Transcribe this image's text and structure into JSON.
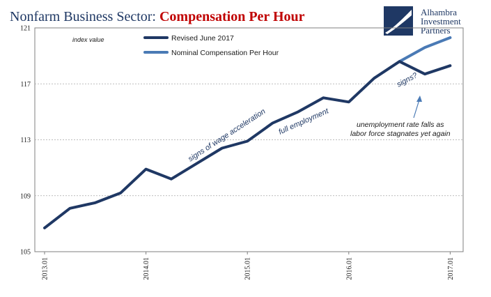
{
  "title": {
    "part1": "Nonfarm Business Sector: ",
    "part2": "Compensation Per Hour"
  },
  "logo": {
    "line1": "Alhambra",
    "line2": "Investment",
    "line3": "Partners"
  },
  "colors": {
    "revised": "#1f3864",
    "nominal": "#4a7ab5",
    "title_main": "#1f3864",
    "title_accent": "#c00000",
    "grid": "#a6a6a6"
  },
  "chart_data": {
    "type": "line",
    "ylabel_note": "index value",
    "ylim": [
      105,
      121
    ],
    "yticks": [
      "105",
      "109",
      "113",
      "117",
      "121"
    ],
    "xticks": [
      "2013.01",
      "2014.01",
      "2015.01",
      "2016.01",
      "2017.01"
    ],
    "grid": "horizontal dashed",
    "legend_position": "top-left",
    "series": [
      {
        "name": "Revised June 2017",
        "x": [
          "2013 Q1",
          "2013 Q2",
          "2013 Q3",
          "2013 Q4",
          "2014 Q1",
          "2014 Q2",
          "2014 Q3",
          "2014 Q4",
          "2015 Q1",
          "2015 Q2",
          "2015 Q3",
          "2015 Q4",
          "2016 Q1",
          "2016 Q2",
          "2016 Q3",
          "2016 Q4",
          "2017 Q1"
        ],
        "values": [
          106.7,
          108.1,
          108.5,
          109.2,
          110.9,
          110.2,
          111.3,
          112.4,
          112.9,
          114.2,
          115.0,
          116.0,
          115.7,
          117.4,
          118.6,
          117.7,
          118.3
        ]
      },
      {
        "name": "Nominal Compensation Per Hour",
        "x": [
          "2016 Q3",
          "2016 Q4",
          "2017 Q1"
        ],
        "values": [
          118.6,
          119.6,
          120.3
        ]
      }
    ],
    "annotations": [
      "signs of wage acceleration",
      "full employment",
      "signs?",
      "unemployment rate falls as",
      "labor force stagnates yet again"
    ]
  }
}
